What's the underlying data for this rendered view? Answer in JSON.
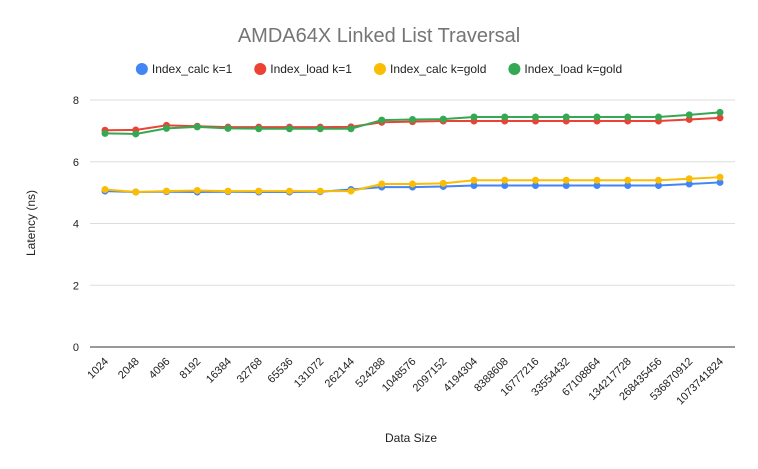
{
  "chart_data": {
    "type": "line",
    "title": "AMDA64X Linked List Traversal",
    "xlabel": "Data Size",
    "ylabel": "Latency (ns)",
    "ylim": [
      0,
      8
    ],
    "yticks": [
      "0",
      "2",
      "4",
      "6",
      "8"
    ],
    "grid": true,
    "legend_position": "top",
    "categories": [
      "1024",
      "2048",
      "4096",
      "8192",
      "16384",
      "32768",
      "65536",
      "131072",
      "262144",
      "524288",
      "1048576",
      "2097152",
      "4194304",
      "8388608",
      "16777216",
      "33554432",
      "67108864",
      "134217728",
      "268435456",
      "536870912",
      "1073741824"
    ],
    "series": [
      {
        "name": "Index_calc k=1",
        "color": "#4285F4",
        "values": [
          5.05,
          5.02,
          5.03,
          5.02,
          5.03,
          5.02,
          5.02,
          5.03,
          5.1,
          5.18,
          5.18,
          5.2,
          5.23,
          5.23,
          5.23,
          5.23,
          5.23,
          5.23,
          5.23,
          5.28,
          5.33
        ]
      },
      {
        "name": "Index_load k=1",
        "color": "#EA4335",
        "values": [
          7.02,
          7.03,
          7.18,
          7.15,
          7.12,
          7.12,
          7.12,
          7.12,
          7.13,
          7.28,
          7.3,
          7.32,
          7.32,
          7.32,
          7.32,
          7.32,
          7.32,
          7.32,
          7.32,
          7.37,
          7.42
        ]
      },
      {
        "name": "Index_calc k=gold",
        "color": "#FBBC04",
        "values": [
          5.1,
          5.02,
          5.05,
          5.07,
          5.05,
          5.05,
          5.05,
          5.05,
          5.05,
          5.28,
          5.28,
          5.3,
          5.4,
          5.4,
          5.4,
          5.4,
          5.4,
          5.4,
          5.4,
          5.45,
          5.5
        ]
      },
      {
        "name": "Index_load k=gold",
        "color": "#34A853",
        "values": [
          6.92,
          6.9,
          7.08,
          7.13,
          7.08,
          7.07,
          7.07,
          7.07,
          7.07,
          7.35,
          7.37,
          7.38,
          7.45,
          7.45,
          7.45,
          7.45,
          7.45,
          7.45,
          7.45,
          7.52,
          7.6
        ]
      }
    ]
  }
}
